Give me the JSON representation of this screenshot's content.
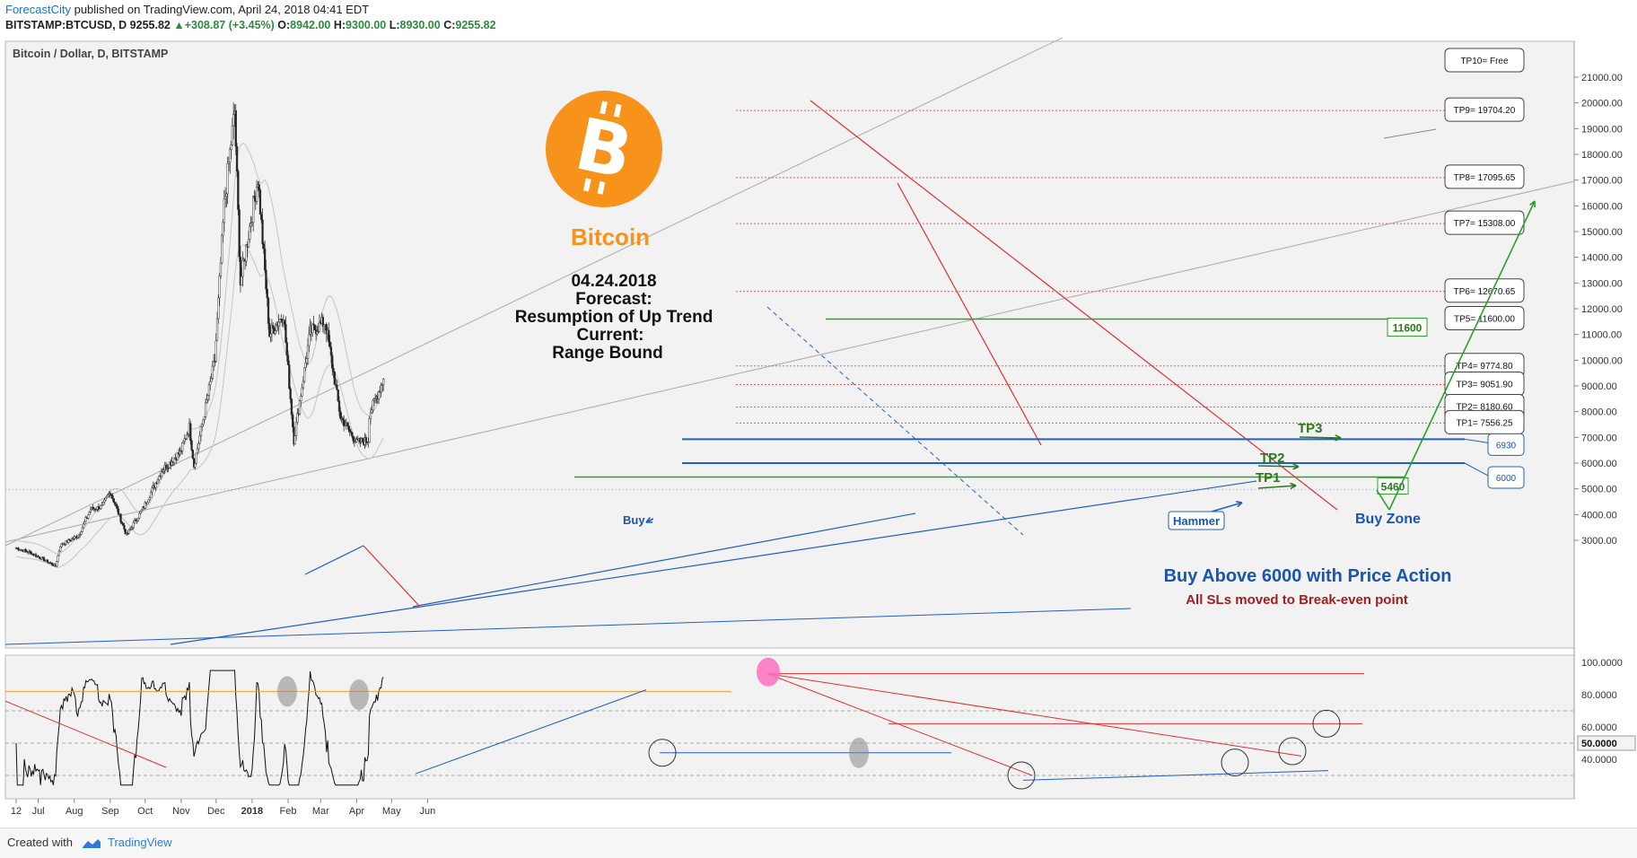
{
  "header": {
    "publisher": "ForecastCity",
    "published_text": "published on TradingView.com, April 24, 2018 04:41 EDT",
    "symbol": "BITSTAMP:BTCUSD, D",
    "last": "9255.82",
    "change": "+308.87 (+3.45%)",
    "open_label": "O:",
    "open": "8942.00",
    "high_label": "H:",
    "high": "9300.00",
    "low_label": "L:",
    "low": "8930.00",
    "close_label": "C:",
    "close": "9255.82"
  },
  "footer": {
    "created_with": "Created with",
    "brand": "TradingView"
  },
  "colors": {
    "bitcoin_orange": "#f7931a",
    "up_candle": "#ffffff",
    "down_candle": "#222222",
    "target_dotted": "#e06060",
    "trend_red": "#e23030",
    "support_blue": "#2060c0",
    "level_green": "#2ea02e",
    "text_green": "#2a7a1a",
    "text_blue": "#1a55b0",
    "text_dark_red": "#a02020"
  },
  "chart_data": {
    "type": "candlestick",
    "title": "Bitcoin / Dollar, D, BITSTAMP",
    "ylim": [
      2400,
      21800
    ],
    "y_ticks": [
      "21000.00",
      "20000.00",
      "19000.00",
      "18000.00",
      "17000.00",
      "16000.00",
      "15000.00",
      "14000.00",
      "13000.00",
      "12000.00",
      "11000.00",
      "10000.00",
      "9000.00",
      "8000.00",
      "7000.00",
      "6000.00",
      "5000.00",
      "4000.00",
      "3000.00"
    ],
    "x_ticks": [
      "12",
      "Jul",
      "Aug",
      "Sep",
      "Oct",
      "Nov",
      "Dec",
      "2018",
      "Feb",
      "Mar",
      "Apr",
      "May",
      "Jun"
    ],
    "approx_close_path": [
      {
        "date": "2017-06-12",
        "close": 2700
      },
      {
        "date": "2017-06-25",
        "close": 2500
      },
      {
        "date": "2017-07-16",
        "close": 2000
      },
      {
        "date": "2017-07-20",
        "close": 2800
      },
      {
        "date": "2017-08-05",
        "close": 3200
      },
      {
        "date": "2017-08-15",
        "close": 4200
      },
      {
        "date": "2017-08-25",
        "close": 4300
      },
      {
        "date": "2017-09-01",
        "close": 4900
      },
      {
        "date": "2017-09-15",
        "close": 3200
      },
      {
        "date": "2017-09-30",
        "close": 4300
      },
      {
        "date": "2017-10-15",
        "close": 5700
      },
      {
        "date": "2017-10-31",
        "close": 6400
      },
      {
        "date": "2017-11-08",
        "close": 7400
      },
      {
        "date": "2017-11-12",
        "close": 5900
      },
      {
        "date": "2017-11-30",
        "close": 10000
      },
      {
        "date": "2017-12-08",
        "close": 16000
      },
      {
        "date": "2017-12-17",
        "close": 19700
      },
      {
        "date": "2017-12-22",
        "close": 13000
      },
      {
        "date": "2018-01-06",
        "close": 17100
      },
      {
        "date": "2018-01-16",
        "close": 11000
      },
      {
        "date": "2018-01-28",
        "close": 11800
      },
      {
        "date": "2018-02-06",
        "close": 6900
      },
      {
        "date": "2018-02-20",
        "close": 11100
      },
      {
        "date": "2018-03-05",
        "close": 11500
      },
      {
        "date": "2018-03-18",
        "close": 7800
      },
      {
        "date": "2018-04-01",
        "close": 6800
      },
      {
        "date": "2018-04-11",
        "close": 6900
      },
      {
        "date": "2018-04-12",
        "close": 7900
      },
      {
        "date": "2018-04-24",
        "close": 9255.82
      }
    ],
    "target_levels": [
      {
        "label": "TP10= Free",
        "value": null
      },
      {
        "label": "TP9= 19704.20",
        "value": 19704.2
      },
      {
        "label": "TP8= 17095.65",
        "value": 17095.65
      },
      {
        "label": "TP7= 15308.00",
        "value": 15308.0
      },
      {
        "label": "TP6= 12670.65",
        "value": 12670.65
      },
      {
        "label": "TP5= 11600.00",
        "value": 11600.0
      },
      {
        "label": "TP4= 9774.80",
        "value": 9774.8
      },
      {
        "label": "TP3= 9051.90",
        "value": 9051.9
      },
      {
        "label": "TP2= 8180.60",
        "value": 8180.6
      },
      {
        "label": "TP1= 7556.25",
        "value": 7556.25
      }
    ],
    "zone_levels": [
      {
        "label": "6930",
        "value": 6930
      },
      {
        "label": "6000",
        "value": 6000
      }
    ],
    "green_levels": [
      {
        "label": "11600",
        "value": 11600
      },
      {
        "label": "5460",
        "value": 5460
      }
    ],
    "annotations": {
      "coin_name": "Bitcoin",
      "date": "04.24.2018",
      "forecast_label": "Forecast:",
      "forecast": "Resumption of Up Trend",
      "current_label": "Current:",
      "current": "Range Bound",
      "buy": "Buy",
      "hammer": "Hammer",
      "buy_zone": "Buy Zone",
      "tp1": "TP1",
      "tp2": "TP2",
      "tp3": "TP3",
      "buy_above": "Buy Above 6000 with Price Action",
      "sl_note": "All SLs moved to Break-even point"
    },
    "oscillator": {
      "ylim": [
        20,
        100
      ],
      "y_ticks": [
        "100.0000",
        "80.0000",
        "60.0000",
        "50.0000",
        "40.0000"
      ],
      "current_value_label": "50.0000"
    }
  }
}
